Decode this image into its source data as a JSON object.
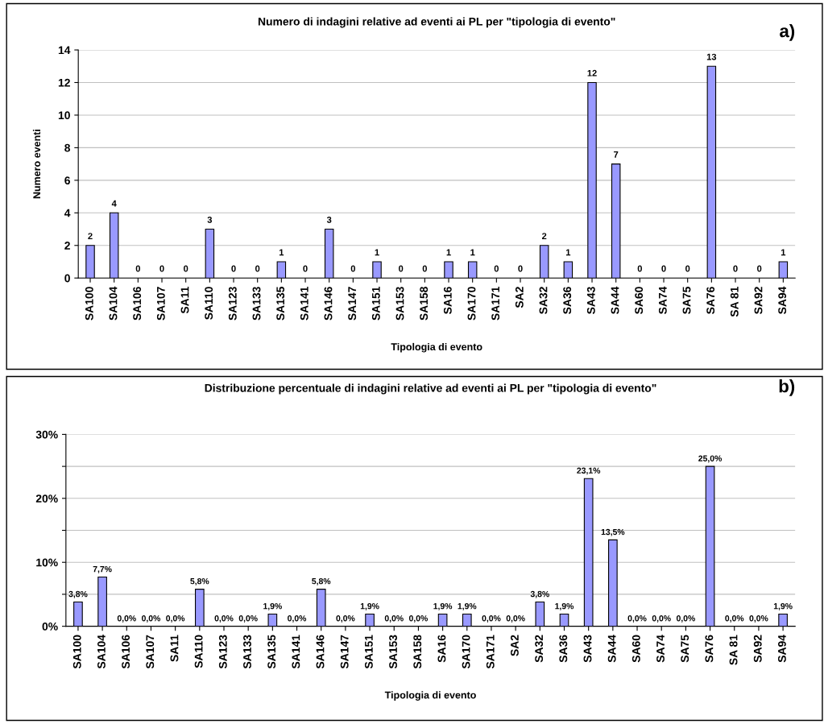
{
  "chart_data": [
    {
      "type": "bar",
      "title": "Numero di indagini relative ad eventi ai PL per \"tipologia di evento\"",
      "xlabel": "Tipologia di evento",
      "ylabel": "Numero eventi",
      "annotations": [
        "a)"
      ],
      "categories": [
        "SA100",
        "SA104",
        "SA106",
        "SA107",
        "SA11",
        "SA110",
        "SA123",
        "SA133",
        "SA135",
        "SA141",
        "SA146",
        "SA147",
        "SA151",
        "SA153",
        "SA158",
        "SA16",
        "SA170",
        "SA171",
        "SA2",
        "SA32",
        "SA36",
        "SA43",
        "SA44",
        "SA60",
        "SA74",
        "SA75",
        "SA76",
        "SA 81",
        "SA92",
        "SA94"
      ],
      "values": [
        2,
        4,
        0,
        0,
        0,
        3,
        0,
        0,
        1,
        0,
        3,
        0,
        1,
        0,
        0,
        1,
        1,
        0,
        0,
        2,
        1,
        12,
        7,
        0,
        0,
        0,
        13,
        0,
        0,
        1
      ],
      "color": "#9999ff",
      "ylim": [
        0,
        14
      ],
      "yticks": [
        0,
        2,
        4,
        6,
        8,
        10,
        12,
        14
      ],
      "grid": "y",
      "data_labels": true
    },
    {
      "type": "bar",
      "title": "Distribuzione percentuale di indagini relative ad eventi ai PL per \"tipologia di evento\"",
      "xlabel": "Tipologia di evento",
      "annotations": [
        "b)"
      ],
      "categories": [
        "SA100",
        "SA104",
        "SA106",
        "SA107",
        "SA11",
        "SA110",
        "SA123",
        "SA133",
        "SA135",
        "SA141",
        "SA146",
        "SA147",
        "SA151",
        "SA153",
        "SA158",
        "SA16",
        "SA170",
        "SA171",
        "SA2",
        "SA32",
        "SA36",
        "SA43",
        "SA44",
        "SA60",
        "SA74",
        "SA75",
        "SA76",
        "SA 81",
        "SA92",
        "SA94"
      ],
      "values": [
        3.8,
        7.7,
        0,
        0,
        0,
        5.8,
        0,
        0,
        1.9,
        0,
        5.8,
        0,
        1.9,
        0,
        0,
        1.9,
        1.9,
        0,
        0,
        3.8,
        1.9,
        23.1,
        13.5,
        0,
        0,
        0,
        25.0,
        0,
        0,
        1.9
      ],
      "value_labels": [
        "3,8%",
        "7,7%",
        "0,0%",
        "0,0%",
        "0,0%",
        "5,8%",
        "0,0%",
        "0,0%",
        "1,9%",
        "0,0%",
        "5,8%",
        "0,0%",
        "1,9%",
        "0,0%",
        "0,0%",
        "1,9%",
        "1,9%",
        "0,0%",
        "0,0%",
        "3,8%",
        "1,9%",
        "23,1%",
        "13,5%",
        "0,0%",
        "0,0%",
        "0,0%",
        "25,0%",
        "0,0%",
        "0,0%",
        "1,9%"
      ],
      "color": "#9999ff",
      "ylim": [
        0,
        30
      ],
      "yticks": [
        {
          "value": 0,
          "label": "0%"
        },
        {
          "value": 5,
          "label": null
        },
        {
          "value": 10,
          "label": "10%"
        },
        {
          "value": 15,
          "label": null
        },
        {
          "value": 20,
          "label": "20%"
        },
        {
          "value": 25,
          "label": null
        },
        {
          "value": 30,
          "label": "30%"
        }
      ],
      "grid": "y"
    }
  ]
}
